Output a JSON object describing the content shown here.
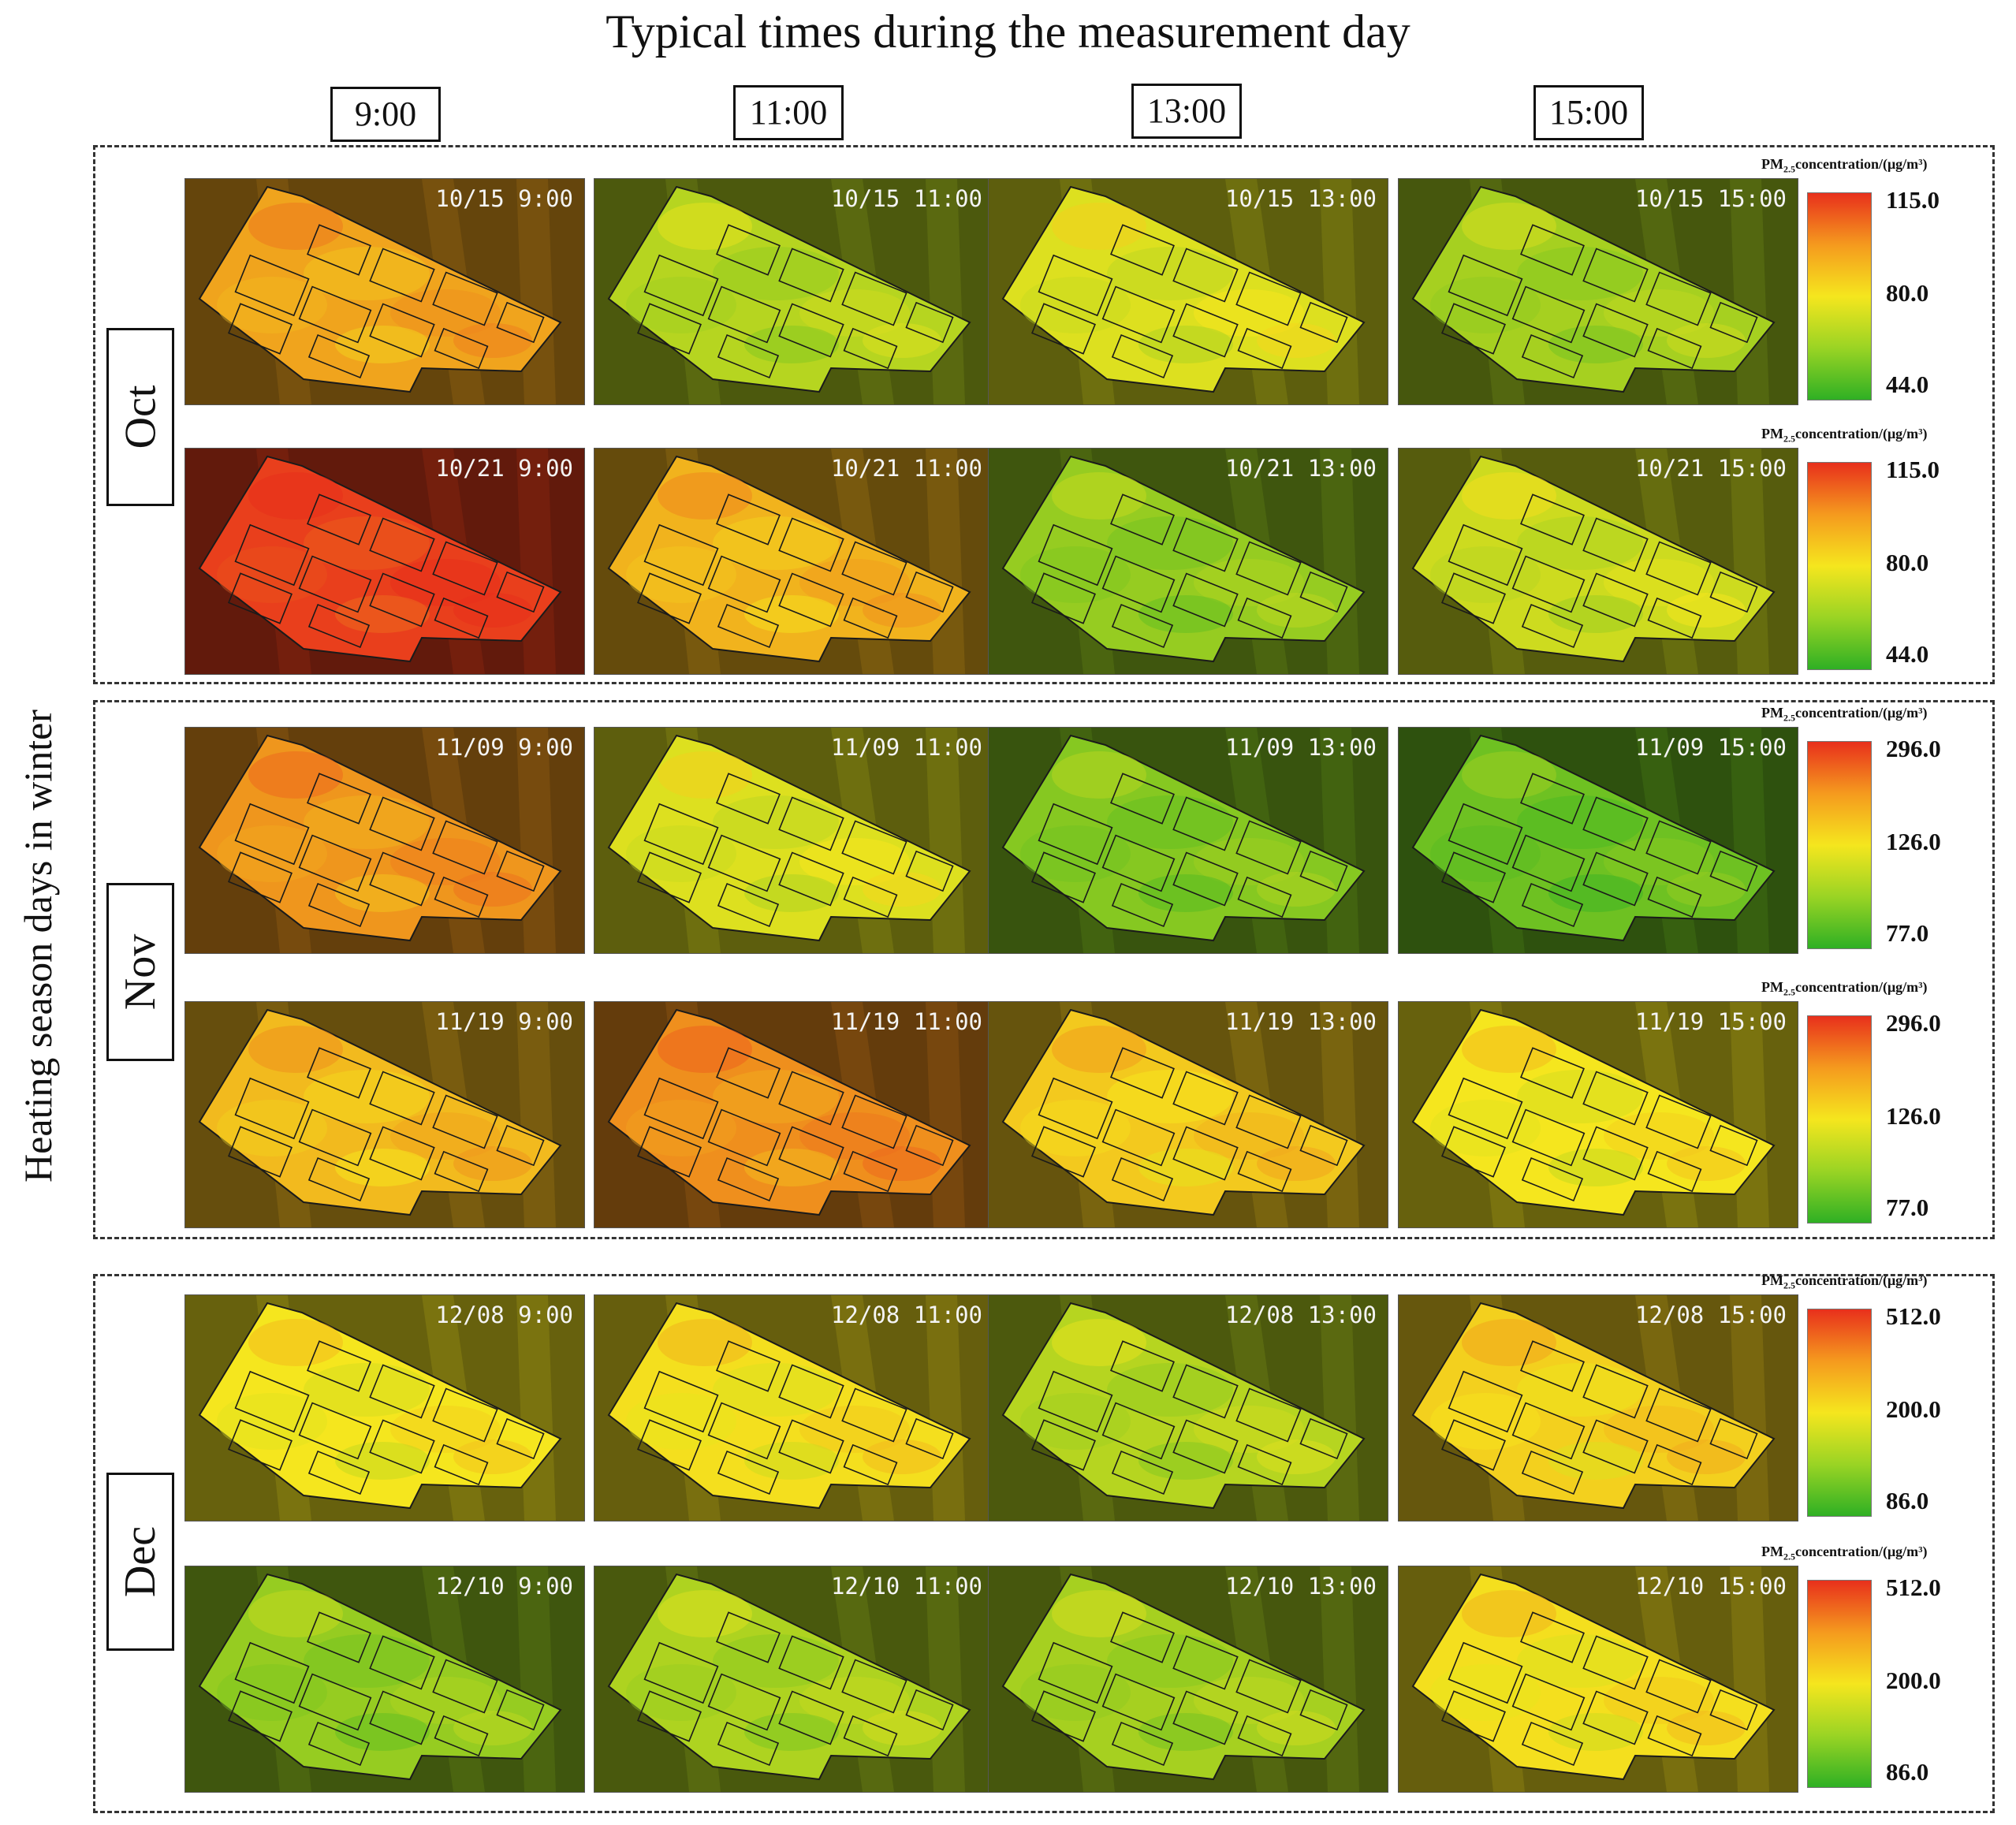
{
  "figure": {
    "title": "Typical times during the measurement day",
    "side_label": "Heating season days in winter",
    "times": [
      "9:00",
      "11:00",
      "13:00",
      "15:00"
    ],
    "colors": {
      "high": "#e8301c",
      "mid": "#f5e61e",
      "low": "#2fb024",
      "dark": "#2e3b14"
    }
  },
  "groups": [
    {
      "month": "Oct",
      "rows": [
        {
          "stamps": [
            "10/15 9:00",
            "10/15 11:00",
            "10/15 13:00",
            "10/15 15:00"
          ],
          "levels": [
            0.68,
            0.34,
            0.44,
            0.3
          ],
          "legend": {
            "title_prefix": "PM",
            "title_sub": "2.5",
            "title_suffix": "concentration/(μg/m³)",
            "max": "115.0",
            "mid": "80.0",
            "min": "44.0"
          }
        },
        {
          "stamps": [
            "10/21 9:00",
            "10/21 11:00",
            "10/21 13:00",
            "10/21 15:00"
          ],
          "levels": [
            0.96,
            0.64,
            0.26,
            0.4
          ],
          "legend": {
            "title_prefix": "PM",
            "title_sub": "2.5",
            "title_suffix": "concentration/(μg/m³)",
            "max": "115.0",
            "mid": "80.0",
            "min": "44.0"
          }
        }
      ]
    },
    {
      "month": "Nov",
      "rows": [
        {
          "stamps": [
            "11/09 9:00",
            "11/09 11:00",
            "11/09 13:00",
            "11/09 15:00"
          ],
          "levels": [
            0.72,
            0.44,
            0.22,
            0.16
          ],
          "legend": {
            "title_prefix": "PM",
            "title_sub": "2.5",
            "title_suffix": "concentration/(μg/m³)",
            "max": "296.0",
            "mid": "126.0",
            "min": "77.0"
          }
        },
        {
          "stamps": [
            "11/19 9:00",
            "11/19 11:00",
            "11/19 13:00",
            "11/19 15:00"
          ],
          "levels": [
            0.62,
            0.74,
            0.58,
            0.5
          ],
          "legend": {
            "title_prefix": "PM",
            "title_sub": "2.5",
            "title_suffix": "concentration/(μg/m³)",
            "max": "296.0",
            "mid": "126.0",
            "min": "77.0"
          }
        }
      ]
    },
    {
      "month": "Dec",
      "rows": [
        {
          "stamps": [
            "12/08 9:00",
            "12/08 11:00",
            "12/08 13:00",
            "12/08 15:00"
          ],
          "levels": [
            0.5,
            0.52,
            0.34,
            0.56
          ],
          "legend": {
            "title_prefix": "PM",
            "title_sub": "2.5",
            "title_suffix": "concentration/(μg/m³)",
            "max": "512.0",
            "mid": "200.0",
            "min": "86.0"
          }
        },
        {
          "stamps": [
            "12/10 9:00",
            "12/10 11:00",
            "12/10 13:00",
            "12/10 15:00"
          ],
          "levels": [
            0.26,
            0.32,
            0.3,
            0.52
          ],
          "legend": {
            "title_prefix": "PM",
            "title_sub": "2.5",
            "title_suffix": "concentration/(μg/m³)",
            "max": "512.0",
            "mid": "200.0",
            "min": "86.0"
          }
        }
      ]
    }
  ]
}
